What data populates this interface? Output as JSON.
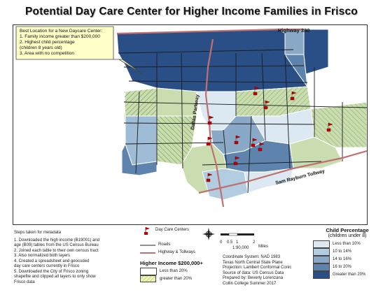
{
  "title": "Potential Day Care Center for Higher Income Families in Frisco",
  "callout": {
    "heading": "Best Location for a New Daycare Center:",
    "lines": [
      "1. Family income greater than $200,000",
      "2. Highest child percentage",
      "(children 8 years old)",
      "3. Area with no competition"
    ]
  },
  "road_labels": {
    "highway_380": "Highway 380",
    "dallas_parkway": "Dallas Parkway",
    "sam_rayburn": "Sam Rayburn Tollway"
  },
  "steps": {
    "heading": "Steps taken for metadata",
    "lines": [
      "1. Downloaded the high income (B19001) and",
      "age (B09) tables from the US Census Bureau",
      "2. Joined each table to their own census tract",
      "3. Also normalized both layers",
      "4. Created a spreadsheet and geocoded",
      "day care centers currently in Frisco",
      "5. Downloaded the City of Frisco zoning",
      "shapefile and clipped all layers to only show",
      "Frisco data"
    ]
  },
  "legend_features": {
    "daycare": "Day Care Centers",
    "roads": "Roads",
    "highways": "Highway & Tollways"
  },
  "income_legend": {
    "heading": "Higher Income $200,000+",
    "items": [
      "Less than 20%",
      "greater than 20%"
    ]
  },
  "scale": {
    "ticks": [
      "0",
      "0.5",
      "1",
      "2"
    ],
    "unit": "Miles",
    "ratio": "1:90,000"
  },
  "metadata": {
    "lines": [
      "Coordinate System: NAD 1983",
      "Texas North Central State Plane",
      "Projection: Lambert Conformal Conic",
      "Source of data: US Census Data",
      "Prepared by: Beverly Lorenzana",
      "Collin College Summer 2017"
    ]
  },
  "child_legend": {
    "heading": "Child Percentage",
    "subheading": "(children under 8)",
    "items": [
      {
        "label": "Less than 10%",
        "color": "#dce8f2"
      },
      {
        "label": "10 to 14%",
        "color": "#b3cde0"
      },
      {
        "label": "14 to 16%",
        "color": "#8aa9c6"
      },
      {
        "label": "16 to 20%",
        "color": "#5e83ad"
      },
      {
        "label": "Greater than 20%",
        "color": "#2a4f86"
      }
    ]
  },
  "colors": {
    "hatch_high_income": "#a8c88c",
    "highway": "#c07070",
    "daycare_marker": "#c00000"
  }
}
